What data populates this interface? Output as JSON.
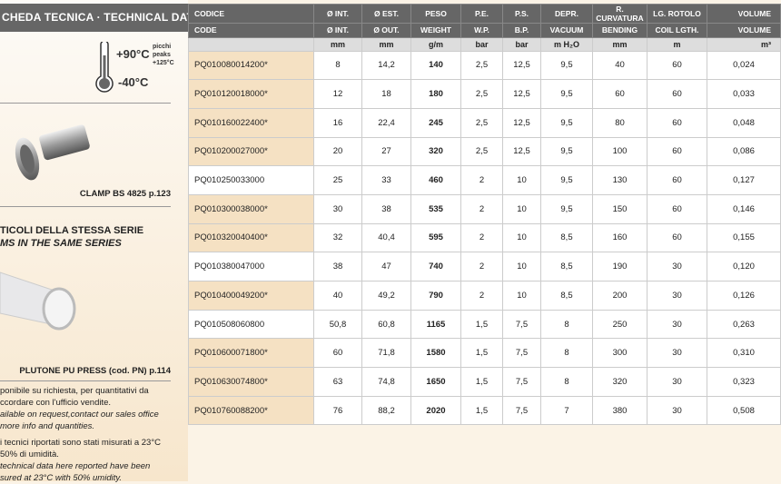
{
  "sidebar": {
    "title": "CHEDA TECNICA · TECHNICAL DATA",
    "temp_max": "+90°C",
    "temp_min": "-40°C",
    "peaks": [
      "picchi",
      "peaks",
      "+125°C"
    ],
    "clamp_caption": "CLAMP BS 4825 p.123",
    "series_it": "TICOLI DELLA STESSA SERIE",
    "series_en": "MS IN THE SAME SERIES",
    "hose_caption": "PLUTONE PU PRESS (cod. PN) p.114",
    "note1_it": [
      "ponibile su richiesta, per quantitativi da",
      "ccordare con l'ufficio vendite."
    ],
    "note1_en": [
      "ailable on request,contact our sales office",
      "more info and quantities."
    ],
    "note2_it": [
      "i tecnici riportati sono stati misurati a 23°C",
      "50% di umidità."
    ],
    "note2_en": [
      "technical data here reported have been",
      "sured at 23°C with 50% umidity."
    ]
  },
  "table": {
    "header_it": [
      "CODICE",
      "Ø INT.",
      "Ø EST.",
      "PESO",
      "P.E.",
      "P.S.",
      "DEPR.",
      "R. CURVATURA",
      "LG. ROTOLO",
      "VOLUME"
    ],
    "header_en": [
      "CODE",
      "Ø INT.",
      "Ø OUT.",
      "WEIGHT",
      "W.P.",
      "B.P.",
      "VACUUM",
      "BENDING",
      "COIL LGTH.",
      "VOLUME"
    ],
    "units": [
      "",
      "mm",
      "mm",
      "g/m",
      "bar",
      "bar",
      "m H₂O",
      "mm",
      "m",
      "m³"
    ],
    "highlight_color": "#f5e1c3",
    "rows": [
      [
        "PQ010080014200*",
        "8",
        "14,2",
        "140",
        "2,5",
        "12,5",
        "9,5",
        "40",
        "60",
        "0,024"
      ],
      [
        "PQ010120018000*",
        "12",
        "18",
        "180",
        "2,5",
        "12,5",
        "9,5",
        "60",
        "60",
        "0,033"
      ],
      [
        "PQ010160022400*",
        "16",
        "22,4",
        "245",
        "2,5",
        "12,5",
        "9,5",
        "80",
        "60",
        "0,048"
      ],
      [
        "PQ010200027000*",
        "20",
        "27",
        "320",
        "2,5",
        "12,5",
        "9,5",
        "100",
        "60",
        "0,086"
      ],
      [
        "PQ010250033000",
        "25",
        "33",
        "460",
        "2",
        "10",
        "9,5",
        "130",
        "60",
        "0,127"
      ],
      [
        "PQ010300038000*",
        "30",
        "38",
        "535",
        "2",
        "10",
        "9,5",
        "150",
        "60",
        "0,146"
      ],
      [
        "PQ010320040400*",
        "32",
        "40,4",
        "595",
        "2",
        "10",
        "8,5",
        "160",
        "60",
        "0,155"
      ],
      [
        "PQ010380047000",
        "38",
        "47",
        "740",
        "2",
        "10",
        "8,5",
        "190",
        "30",
        "0,120"
      ],
      [
        "PQ010400049200*",
        "40",
        "49,2",
        "790",
        "2",
        "10",
        "8,5",
        "200",
        "30",
        "0,126"
      ],
      [
        "PQ010508060800",
        "50,8",
        "60,8",
        "1165",
        "1,5",
        "7,5",
        "8",
        "250",
        "30",
        "0,263"
      ],
      [
        "PQ010600071800*",
        "60",
        "71,8",
        "1580",
        "1,5",
        "7,5",
        "8",
        "300",
        "30",
        "0,310"
      ],
      [
        "PQ010630074800*",
        "63",
        "74,8",
        "1650",
        "1,5",
        "7,5",
        "8",
        "320",
        "30",
        "0,323"
      ],
      [
        "PQ010760088200*",
        "76",
        "88,2",
        "2020",
        "1,5",
        "7,5",
        "7",
        "380",
        "30",
        "0,508"
      ]
    ]
  }
}
